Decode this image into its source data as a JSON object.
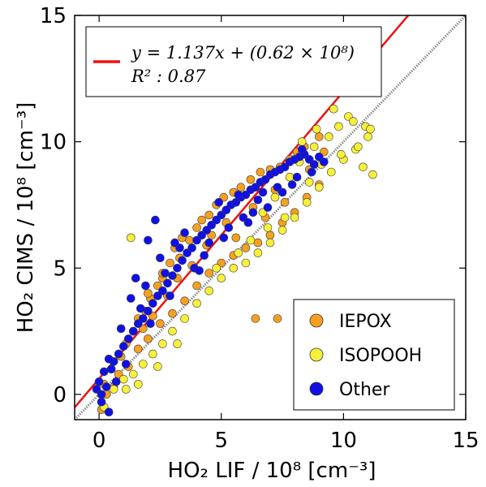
{
  "chart_data": {
    "type": "scatter",
    "xlabel": "HO₂ LIF / 10⁸ [cm⁻³]",
    "ylabel": "HO₂ CIMS / 10⁸ [cm⁻³]",
    "xlim": [
      -1,
      15
    ],
    "ylim": [
      -1,
      15
    ],
    "xticks": [
      "0",
      "5",
      "10",
      "15"
    ],
    "yticks": [
      "0",
      "5",
      "10",
      "15"
    ],
    "grid": false,
    "fit": {
      "equation": "y = 1.137x + (0.62 × 10⁸)",
      "r2": "R² : 0.87",
      "slope": 1.137,
      "intercept": 0.62,
      "color": "#ee1111"
    },
    "one_to_one": {
      "slope": 1,
      "intercept": 0,
      "color": "#888888"
    },
    "legend_position": "lower-right",
    "fit_legend_position": "upper-left",
    "series": [
      {
        "name": "IEPOX",
        "color": "#f5a020",
        "points": [
          [
            0.1,
            -0.6
          ],
          [
            0.3,
            0.0
          ],
          [
            0.2,
            0.4
          ],
          [
            0.5,
            1.0
          ],
          [
            0.9,
            1.5
          ],
          [
            1.1,
            2.0
          ],
          [
            1.4,
            2.5
          ],
          [
            1.6,
            3.0
          ],
          [
            1.9,
            3.3
          ],
          [
            2.1,
            3.8
          ],
          [
            2.4,
            4.3
          ],
          [
            2.6,
            4.6
          ],
          [
            2.9,
            5.2
          ],
          [
            3.1,
            5.8
          ],
          [
            3.4,
            6.2
          ],
          [
            3.7,
            6.1
          ],
          [
            4.0,
            6.6
          ],
          [
            4.2,
            6.9
          ],
          [
            4.5,
            7.1
          ],
          [
            4.8,
            7.5
          ],
          [
            5.1,
            7.8
          ],
          [
            5.5,
            8.0
          ],
          [
            5.8,
            8.2
          ],
          [
            6.2,
            8.5
          ],
          [
            6.6,
            8.8
          ],
          [
            7.0,
            8.9
          ],
          [
            7.4,
            9.0
          ],
          [
            7.8,
            9.3
          ],
          [
            8.1,
            9.6
          ],
          [
            8.4,
            9.8
          ],
          [
            1.2,
            1.1
          ],
          [
            1.6,
            1.8
          ],
          [
            2.0,
            2.2
          ],
          [
            2.5,
            2.8
          ],
          [
            3.0,
            3.2
          ],
          [
            3.5,
            3.7
          ],
          [
            4.0,
            4.3
          ],
          [
            4.5,
            4.8
          ],
          [
            5.0,
            5.2
          ],
          [
            5.5,
            5.5
          ],
          [
            6.0,
            5.8
          ],
          [
            6.5,
            6.0
          ],
          [
            7.0,
            6.3
          ],
          [
            7.5,
            6.8
          ],
          [
            8.0,
            7.2
          ],
          [
            8.5,
            7.8
          ],
          [
            9.0,
            8.3
          ],
          [
            3.2,
            4.6
          ],
          [
            2.8,
            3.9
          ],
          [
            4.4,
            5.9
          ],
          [
            5.2,
            6.8
          ],
          [
            6.3,
            7.4
          ],
          [
            7.2,
            8.1
          ],
          [
            1.8,
            2.6
          ],
          [
            2.2,
            3.1
          ],
          [
            3.8,
            5.1
          ],
          [
            4.6,
            6.3
          ],
          [
            5.6,
            6.2
          ],
          [
            6.8,
            7.0
          ],
          [
            7.6,
            7.6
          ],
          [
            8.6,
            8.9
          ],
          [
            9.2,
            9.6
          ],
          [
            2.0,
            4.0
          ],
          [
            2.6,
            4.8
          ],
          [
            3.3,
            5.4
          ],
          [
            0.6,
            0.3
          ],
          [
            0.8,
            0.8
          ],
          [
            6.4,
            3.0
          ],
          [
            7.3,
            3.0
          ],
          [
            9.0,
            10.2
          ]
        ]
      },
      {
        "name": "ISOPOOH",
        "color": "#f7f03a",
        "points": [
          [
            1.3,
            6.2
          ],
          [
            0.2,
            -0.5
          ],
          [
            0.6,
            0.2
          ],
          [
            1.0,
            0.6
          ],
          [
            1.4,
            0.8
          ],
          [
            1.8,
            1.2
          ],
          [
            2.2,
            1.6
          ],
          [
            2.6,
            2.0
          ],
          [
            3.0,
            2.5
          ],
          [
            3.5,
            3.0
          ],
          [
            4.0,
            3.6
          ],
          [
            4.5,
            4.1
          ],
          [
            5.0,
            4.6
          ],
          [
            5.5,
            5.0
          ],
          [
            6.0,
            5.2
          ],
          [
            6.5,
            5.6
          ],
          [
            7.0,
            6.0
          ],
          [
            7.5,
            6.5
          ],
          [
            8.0,
            7.0
          ],
          [
            8.5,
            7.6
          ],
          [
            9.0,
            8.2
          ],
          [
            9.5,
            8.8
          ],
          [
            10.0,
            9.3
          ],
          [
            10.5,
            9.7
          ],
          [
            11.0,
            10.2
          ],
          [
            11.2,
            8.7
          ],
          [
            10.8,
            9.0
          ],
          [
            9.8,
            10.6
          ],
          [
            10.2,
            11.0
          ],
          [
            9.4,
            10.2
          ],
          [
            8.8,
            9.8
          ],
          [
            8.2,
            9.2
          ],
          [
            7.8,
            8.6
          ],
          [
            7.2,
            7.8
          ],
          [
            6.7,
            7.2
          ],
          [
            9.6,
            11.3
          ],
          [
            10.4,
            10.8
          ],
          [
            10.9,
            10.6
          ],
          [
            9.1,
            9.1
          ],
          [
            8.6,
            8.4
          ],
          [
            7.6,
            7.0
          ],
          [
            6.9,
            6.6
          ],
          [
            6.2,
            6.1
          ],
          [
            5.7,
            5.6
          ],
          [
            4.8,
            5.0
          ],
          [
            1.1,
            0.2
          ],
          [
            1.6,
            0.4
          ],
          [
            2.4,
            1.1
          ],
          [
            3.2,
            2.0
          ],
          [
            8.3,
            10.0
          ],
          [
            8.9,
            10.5
          ],
          [
            9.9,
            9.5
          ],
          [
            10.6,
            9.8
          ],
          [
            11.1,
            10.5
          ]
        ]
      },
      {
        "name": "Other",
        "color": "#1010e6",
        "points": [
          [
            -0.1,
            0.2
          ],
          [
            0.0,
            0.5
          ],
          [
            0.1,
            -0.3
          ],
          [
            0.2,
            0.9
          ],
          [
            0.3,
            0.3
          ],
          [
            0.4,
            -0.7
          ],
          [
            0.5,
            1.0
          ],
          [
            0.1,
            0.0
          ],
          [
            0.6,
            1.3
          ],
          [
            0.8,
            1.6
          ],
          [
            1.0,
            1.9
          ],
          [
            1.2,
            2.2
          ],
          [
            1.4,
            2.5
          ],
          [
            1.6,
            2.8
          ],
          [
            1.8,
            3.0
          ],
          [
            2.0,
            3.3
          ],
          [
            2.2,
            3.6
          ],
          [
            2.4,
            3.9
          ],
          [
            2.6,
            4.1
          ],
          [
            2.8,
            4.4
          ],
          [
            3.0,
            4.7
          ],
          [
            3.2,
            5.0
          ],
          [
            3.4,
            5.3
          ],
          [
            3.6,
            5.6
          ],
          [
            3.8,
            5.8
          ],
          [
            4.0,
            6.1
          ],
          [
            4.2,
            6.3
          ],
          [
            4.4,
            6.5
          ],
          [
            4.6,
            6.7
          ],
          [
            4.8,
            6.9
          ],
          [
            5.0,
            7.1
          ],
          [
            5.2,
            7.3
          ],
          [
            5.4,
            7.5
          ],
          [
            5.6,
            7.6
          ],
          [
            5.8,
            7.8
          ],
          [
            6.0,
            7.9
          ],
          [
            6.2,
            8.1
          ],
          [
            6.4,
            8.2
          ],
          [
            6.6,
            8.4
          ],
          [
            6.8,
            8.5
          ],
          [
            7.0,
            8.7
          ],
          [
            7.2,
            8.8
          ],
          [
            7.4,
            8.9
          ],
          [
            7.6,
            9.0
          ],
          [
            7.8,
            9.2
          ],
          [
            8.0,
            9.3
          ],
          [
            8.2,
            9.4
          ],
          [
            8.4,
            9.5
          ],
          [
            8.6,
            9.3
          ],
          [
            8.8,
            9.1
          ],
          [
            9.0,
            9.4
          ],
          [
            9.2,
            9.2
          ],
          [
            2.3,
            6.9
          ],
          [
            2.0,
            6.1
          ],
          [
            1.5,
            4.6
          ],
          [
            1.3,
            3.8
          ],
          [
            3.9,
            5.0
          ],
          [
            4.3,
            5.5
          ],
          [
            5.1,
            6.2
          ],
          [
            5.9,
            7.0
          ],
          [
            6.3,
            7.2
          ],
          [
            6.9,
            7.4
          ],
          [
            7.5,
            8.0
          ],
          [
            8.1,
            8.6
          ],
          [
            8.7,
            8.8
          ],
          [
            1.7,
            3.4
          ],
          [
            2.7,
            4.8
          ],
          [
            3.3,
            5.8
          ],
          [
            4.5,
            6.0
          ],
          [
            5.3,
            6.6
          ],
          [
            6.7,
            8.0
          ],
          [
            7.3,
            8.2
          ],
          [
            4.9,
            7.6
          ],
          [
            5.7,
            7.9
          ],
          [
            3.5,
            6.4
          ],
          [
            0.9,
            2.6
          ],
          [
            0.4,
            1.4
          ],
          [
            0.7,
            0.5
          ],
          [
            1.1,
            1.2
          ],
          [
            2.1,
            2.8
          ],
          [
            2.9,
            3.9
          ],
          [
            4.1,
            4.9
          ],
          [
            6.1,
            6.8
          ],
          [
            6.5,
            7.7
          ],
          [
            7.9,
            8.3
          ],
          [
            8.3,
            9.7
          ],
          [
            3.1,
            6.0
          ],
          [
            2.5,
            5.4
          ],
          [
            1.9,
            4.3
          ]
        ]
      }
    ]
  }
}
